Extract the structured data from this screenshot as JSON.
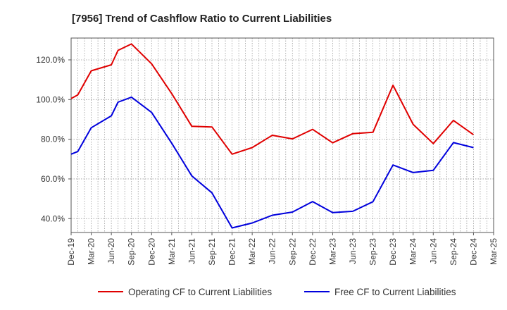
{
  "chart_data": {
    "type": "line",
    "title": "[7956]  Trend of Cashflow Ratio to Current Liabilities",
    "xlabel": "",
    "ylabel": "",
    "x_tick_labels": [
      "Dec-19",
      "Mar-20",
      "Jun-20",
      "Sep-20",
      "Dec-20",
      "Mar-21",
      "Jun-21",
      "Sep-21",
      "Dec-21",
      "Mar-22",
      "Jun-22",
      "Sep-22",
      "Dec-22",
      "Mar-23",
      "Jun-23",
      "Sep-23",
      "Dec-23",
      "Mar-24",
      "Jun-24",
      "Sep-24",
      "Dec-24",
      "Mar-25"
    ],
    "y_tick_labels": [
      "40.0%",
      "60.0%",
      "80.0%",
      "100.0%",
      "120.0%"
    ],
    "y_ticks": [
      40,
      60,
      80,
      100,
      120
    ],
    "ylim": [
      33,
      131
    ],
    "x_range": [
      0,
      21
    ],
    "grid": true,
    "legend_position": "bottom-center",
    "series": [
      {
        "name": "Operating CF to Current Liabilities",
        "color": "#e00000",
        "points": [
          [
            0,
            100.5
          ],
          [
            0.33,
            102.3
          ],
          [
            1,
            114.5
          ],
          [
            2,
            117.5
          ],
          [
            2.33,
            124.8
          ],
          [
            3,
            128
          ],
          [
            4,
            118
          ],
          [
            5,
            103
          ],
          [
            6,
            86.5
          ],
          [
            7,
            86.2
          ],
          [
            8,
            72.5
          ],
          [
            9,
            75.8
          ],
          [
            10,
            82
          ],
          [
            11,
            80.2
          ],
          [
            12,
            85
          ],
          [
            13,
            78.2
          ],
          [
            14,
            82.8
          ],
          [
            15,
            83.5
          ],
          [
            16,
            107.2
          ],
          [
            17,
            87.5
          ],
          [
            18,
            77.8
          ],
          [
            19,
            89.5
          ],
          [
            20,
            82.3
          ]
        ]
      },
      {
        "name": "Free CF to Current Liabilities",
        "color": "#0000dd",
        "points": [
          [
            0,
            72.5
          ],
          [
            0.33,
            73.8
          ],
          [
            1,
            85.8
          ],
          [
            2,
            91.8
          ],
          [
            2.33,
            98.7
          ],
          [
            3,
            101.2
          ],
          [
            4,
            93.5
          ],
          [
            5,
            78
          ],
          [
            6,
            61.5
          ],
          [
            7,
            53
          ],
          [
            8,
            35.3
          ],
          [
            9,
            37.8
          ],
          [
            10,
            41.7
          ],
          [
            11,
            43.3
          ],
          [
            12,
            48.6
          ],
          [
            13,
            43
          ],
          [
            14,
            43.7
          ],
          [
            15,
            48.5
          ],
          [
            16,
            67
          ],
          [
            17,
            63.2
          ],
          [
            18,
            64.3
          ],
          [
            19,
            78.3
          ],
          [
            20,
            75.8
          ]
        ]
      }
    ]
  }
}
